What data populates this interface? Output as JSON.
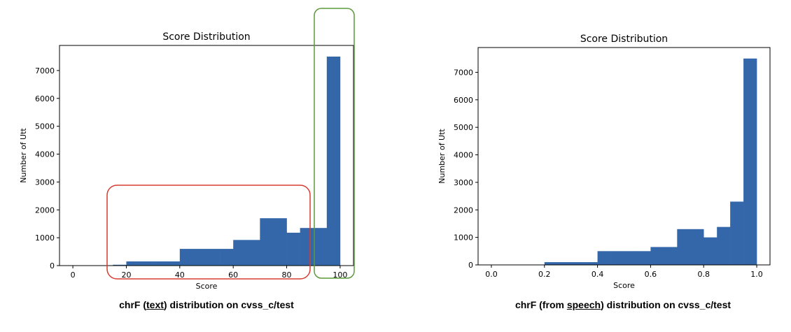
{
  "chart_data": [
    {
      "type": "bar",
      "title": "Score Distribution",
      "xlabel": "Score",
      "ylabel": "Number of Utt",
      "xlim": [
        -5,
        105
      ],
      "ylim": [
        0,
        7900
      ],
      "xticks": [
        0,
        20,
        40,
        60,
        80,
        100
      ],
      "yticks": [
        0,
        1000,
        2000,
        3000,
        4000,
        5000,
        6000,
        7000
      ],
      "bin_edges": [
        0,
        5,
        10,
        15,
        20,
        25,
        30,
        35,
        40,
        45,
        50,
        55,
        60,
        65,
        70,
        75,
        80,
        85,
        90,
        95,
        100
      ],
      "values": [
        5,
        5,
        10,
        30,
        150,
        150,
        150,
        150,
        600,
        600,
        600,
        600,
        920,
        920,
        1700,
        1700,
        1180,
        1350,
        1350,
        7500
      ],
      "bar_color": "#3467a9",
      "annotations": {
        "low_range_box_color": "#d63b2f",
        "high_range_box_color": "#5b9a3c"
      },
      "caption_parts": [
        "chrF (",
        "text",
        ") distribution on cvss_c/test"
      ]
    },
    {
      "type": "bar",
      "title": "Score Distribution",
      "xlabel": "Score",
      "ylabel": "Number of Utt",
      "xlim": [
        -0.05,
        1.05
      ],
      "ylim": [
        0,
        7900
      ],
      "xticks": [
        "0.0",
        "0.2",
        "0.4",
        "0.6",
        "0.8",
        "1.0"
      ],
      "xtick_values": [
        0,
        0.2,
        0.4,
        0.6,
        0.8,
        1.0
      ],
      "yticks": [
        0,
        1000,
        2000,
        3000,
        4000,
        5000,
        6000,
        7000
      ],
      "bin_edges": [
        0,
        0.05,
        0.1,
        0.15,
        0.2,
        0.25,
        0.3,
        0.35,
        0.4,
        0.45,
        0.5,
        0.55,
        0.6,
        0.65,
        0.7,
        0.75,
        0.8,
        0.85,
        0.9,
        0.95,
        1.0
      ],
      "values": [
        5,
        5,
        5,
        5,
        100,
        100,
        100,
        100,
        500,
        500,
        500,
        500,
        650,
        650,
        1300,
        1300,
        1000,
        1380,
        2300,
        7500
      ],
      "bar_color": "#3467a9",
      "caption_parts": [
        "chrF (from ",
        "speech",
        ") distribution on cvss_c/test"
      ]
    }
  ]
}
